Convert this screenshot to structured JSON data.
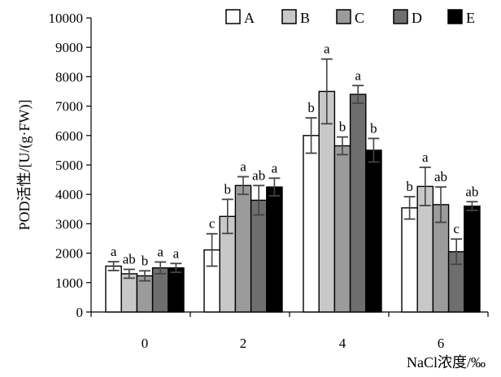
{
  "chart_data": {
    "type": "bar",
    "title": "",
    "xlabel": "NaCl浓度/‰",
    "ylabel": "POD活性/[U/(g·FW)]",
    "ylim": [
      0,
      10000
    ],
    "yticks": [
      "0",
      "1000",
      "2000",
      "3000",
      "4000",
      "5000",
      "6000",
      "7000",
      "8000",
      "9000",
      "10000"
    ],
    "categories": [
      "0",
      "2",
      "4",
      "6"
    ],
    "grid": false,
    "legend_position": "top",
    "series": [
      {
        "name": "A",
        "color": "#ffffff",
        "values": [
          1560,
          2110,
          6000,
          3540
        ],
        "errors": [
          150,
          550,
          600,
          380
        ],
        "letters": [
          "a",
          "c",
          "b",
          "b"
        ]
      },
      {
        "name": "B",
        "color": "#c8c8c8",
        "values": [
          1300,
          3250,
          7500,
          4270
        ],
        "errors": [
          150,
          580,
          1100,
          650
        ],
        "letters": [
          "ab",
          "b",
          "a",
          "a"
        ]
      },
      {
        "name": "C",
        "color": "#9b9b9b",
        "values": [
          1230,
          4300,
          5650,
          3650
        ],
        "errors": [
          170,
          300,
          300,
          600
        ],
        "letters": [
          "b",
          "a",
          "b",
          "ab"
        ]
      },
      {
        "name": "D",
        "color": "#6e6e6e",
        "values": [
          1500,
          3800,
          7400,
          2050
        ],
        "errors": [
          200,
          500,
          300,
          430
        ],
        "letters": [
          "a",
          "ab",
          "a",
          "c"
        ]
      },
      {
        "name": "E",
        "color": "#000000",
        "values": [
          1500,
          4250,
          5500,
          3600
        ],
        "errors": [
          150,
          300,
          400,
          150
        ],
        "letters": [
          "a",
          "a",
          "b",
          "ab"
        ]
      }
    ]
  }
}
